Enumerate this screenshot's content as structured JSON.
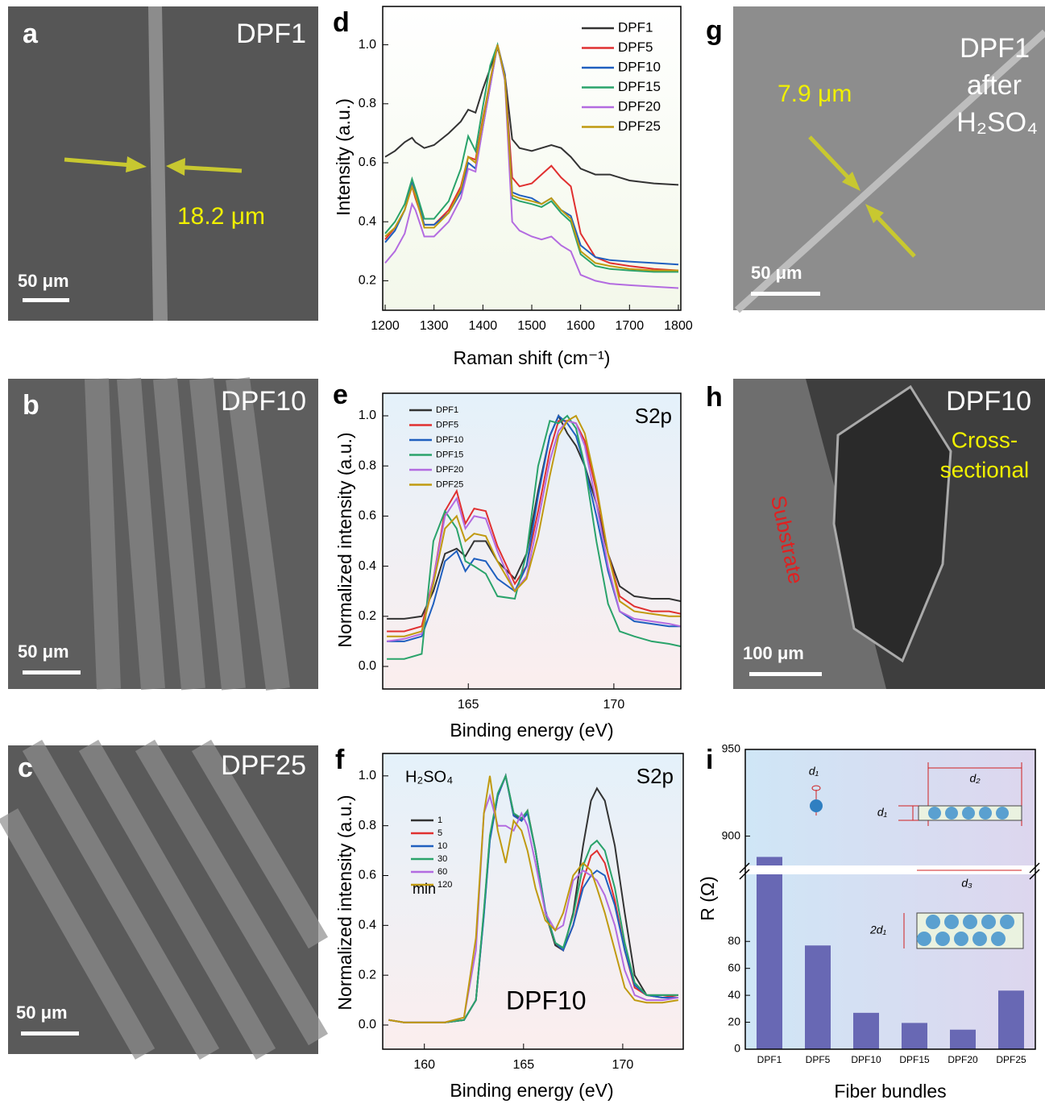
{
  "panels": [
    {
      "label": "a",
      "texts": [
        "DPF1",
        "18.2 μm",
        "50 μm"
      ]
    },
    {
      "label": "b",
      "texts": [
        "DPF10",
        "50 μm"
      ]
    },
    {
      "label": "c",
      "texts": [
        "DPF25",
        "50 μm"
      ]
    },
    {
      "label": "g",
      "texts": [
        "DPF1",
        "after",
        "H₂SO₄",
        "7.9 μm",
        "50 μm"
      ]
    },
    {
      "label": "h",
      "texts": [
        "DPF10",
        "Cross-",
        "sectional",
        "Substrate",
        "100 μm"
      ]
    }
  ],
  "chart_data": [
    {
      "type": "line",
      "label": "d",
      "x_label": "Raman shift (cm⁻¹)",
      "y_label": "Intensity (a.u.)",
      "x": [
        1200,
        1220,
        1240,
        1255,
        1262,
        1280,
        1300,
        1330,
        1355,
        1370,
        1385,
        1400,
        1415,
        1430,
        1445,
        1460,
        1475,
        1500,
        1520,
        1540,
        1560,
        1580,
        1600,
        1630,
        1660,
        1700,
        1750,
        1800
      ],
      "xlim": [
        1195,
        1805
      ],
      "ylim": [
        0.1,
        1.13
      ],
      "xticks": [
        1200,
        1300,
        1400,
        1500,
        1600,
        1700,
        1800
      ],
      "yticks": [
        0.2,
        0.4,
        0.6,
        0.8,
        {
          "value": 1,
          "label": "1.0"
        }
      ],
      "series": [
        {
          "name": "DPF1",
          "color": "#333333",
          "values": [
            0.62,
            0.64,
            0.67,
            0.685,
            0.67,
            0.65,
            0.66,
            0.7,
            0.74,
            0.78,
            0.77,
            0.85,
            0.92,
            0.99,
            0.9,
            0.68,
            0.65,
            0.64,
            0.65,
            0.66,
            0.65,
            0.62,
            0.58,
            0.56,
            0.56,
            0.54,
            0.53,
            0.525
          ]
        },
        {
          "name": "DPF5",
          "color": "#e03030",
          "values": [
            0.34,
            0.38,
            0.44,
            0.52,
            0.48,
            0.39,
            0.39,
            0.44,
            0.52,
            0.62,
            0.61,
            0.75,
            0.88,
            1.0,
            0.9,
            0.55,
            0.52,
            0.53,
            0.56,
            0.59,
            0.55,
            0.52,
            0.36,
            0.28,
            0.26,
            0.25,
            0.24,
            0.235
          ]
        },
        {
          "name": "DPF10",
          "color": "#1f5fbf",
          "values": [
            0.33,
            0.37,
            0.44,
            0.53,
            0.5,
            0.39,
            0.39,
            0.43,
            0.5,
            0.6,
            0.58,
            0.72,
            0.86,
            1.0,
            0.9,
            0.5,
            0.49,
            0.48,
            0.46,
            0.48,
            0.44,
            0.42,
            0.32,
            0.28,
            0.27,
            0.265,
            0.26,
            0.255
          ]
        },
        {
          "name": "DPF15",
          "color": "#2aa36b",
          "values": [
            0.36,
            0.4,
            0.46,
            0.545,
            0.51,
            0.41,
            0.41,
            0.47,
            0.58,
            0.69,
            0.64,
            0.79,
            0.93,
            1.0,
            0.88,
            0.48,
            0.47,
            0.46,
            0.45,
            0.47,
            0.43,
            0.4,
            0.29,
            0.25,
            0.24,
            0.235,
            0.23,
            0.23
          ]
        },
        {
          "name": "DPF20",
          "color": "#b36be0",
          "values": [
            0.26,
            0.3,
            0.36,
            0.46,
            0.44,
            0.35,
            0.35,
            0.4,
            0.48,
            0.58,
            0.57,
            0.72,
            0.86,
            1.0,
            0.88,
            0.4,
            0.37,
            0.35,
            0.34,
            0.35,
            0.32,
            0.3,
            0.22,
            0.2,
            0.19,
            0.185,
            0.18,
            0.175
          ]
        },
        {
          "name": "DPF25",
          "color": "#c09a10",
          "values": [
            0.35,
            0.38,
            0.44,
            0.52,
            0.49,
            0.38,
            0.38,
            0.43,
            0.51,
            0.62,
            0.6,
            0.74,
            0.88,
            1.0,
            0.89,
            0.49,
            0.48,
            0.47,
            0.46,
            0.48,
            0.44,
            0.41,
            0.3,
            0.26,
            0.25,
            0.24,
            0.235,
            0.235
          ]
        }
      ]
    },
    {
      "type": "line",
      "label": "e",
      "x_label": "Binding energy (eV)",
      "y_label": "Normalized intensity (a.u.)",
      "annotations": [
        "S2p"
      ],
      "x": [
        162.2,
        162.8,
        163.4,
        163.8,
        164.2,
        164.6,
        164.9,
        165.2,
        165.6,
        166.0,
        166.6,
        167.0,
        167.4,
        167.8,
        168.1,
        168.4,
        168.7,
        169.0,
        169.4,
        169.8,
        170.2,
        170.7,
        171.3,
        171.9,
        172.3
      ],
      "xlim": [
        162.06,
        172.3
      ],
      "ylim": [
        -0.09,
        1.09
      ],
      "xticks": [
        165,
        170
      ],
      "yticks": [
        {
          "value": 0,
          "label": "0.0"
        },
        0.2,
        0.4,
        0.6,
        0.8,
        {
          "value": 1,
          "label": "1.0"
        }
      ],
      "series": [
        {
          "name": "DPF1",
          "color": "#333333",
          "values": [
            0.19,
            0.19,
            0.2,
            0.3,
            0.45,
            0.47,
            0.44,
            0.5,
            0.5,
            0.42,
            0.35,
            0.45,
            0.7,
            0.92,
            1.0,
            0.93,
            0.88,
            0.8,
            0.65,
            0.45,
            0.32,
            0.28,
            0.27,
            0.27,
            0.26
          ]
        },
        {
          "name": "DPF5",
          "color": "#e03030",
          "values": [
            0.14,
            0.14,
            0.16,
            0.35,
            0.62,
            0.7,
            0.57,
            0.63,
            0.62,
            0.48,
            0.33,
            0.4,
            0.62,
            0.86,
            0.98,
            0.98,
            0.97,
            0.9,
            0.7,
            0.45,
            0.28,
            0.24,
            0.22,
            0.22,
            0.21
          ]
        },
        {
          "name": "DPF10",
          "color": "#1f5fbf",
          "values": [
            0.1,
            0.1,
            0.12,
            0.25,
            0.42,
            0.46,
            0.38,
            0.43,
            0.42,
            0.35,
            0.3,
            0.4,
            0.68,
            0.92,
            1.0,
            0.97,
            0.92,
            0.8,
            0.6,
            0.38,
            0.22,
            0.18,
            0.17,
            0.16,
            0.16
          ]
        },
        {
          "name": "DPF15",
          "color": "#2aa36b",
          "values": [
            0.03,
            0.03,
            0.05,
            0.5,
            0.62,
            0.55,
            0.42,
            0.4,
            0.37,
            0.28,
            0.27,
            0.45,
            0.8,
            0.98,
            0.97,
            1.0,
            0.95,
            0.8,
            0.5,
            0.25,
            0.14,
            0.12,
            0.1,
            0.09,
            0.08
          ]
        },
        {
          "name": "DPF20",
          "color": "#b36be0",
          "values": [
            0.1,
            0.11,
            0.13,
            0.35,
            0.6,
            0.67,
            0.55,
            0.6,
            0.59,
            0.46,
            0.3,
            0.36,
            0.58,
            0.82,
            0.94,
            0.98,
            0.97,
            0.88,
            0.65,
            0.4,
            0.22,
            0.19,
            0.18,
            0.17,
            0.16
          ]
        },
        {
          "name": "DPF25",
          "color": "#c09a10",
          "values": [
            0.12,
            0.12,
            0.14,
            0.33,
            0.55,
            0.6,
            0.5,
            0.53,
            0.52,
            0.42,
            0.3,
            0.35,
            0.52,
            0.76,
            0.92,
            0.98,
            1.0,
            0.93,
            0.72,
            0.45,
            0.26,
            0.22,
            0.21,
            0.2,
            0.2
          ]
        }
      ]
    },
    {
      "type": "line",
      "label": "f",
      "x_label": "Binding energy (eV)",
      "y_label": "Normalized intensity (a.u.)",
      "annotations": [
        "H₂SO₄",
        "min",
        "S2p",
        "DPF10"
      ],
      "x": [
        158.2,
        159,
        160,
        161,
        162,
        162.6,
        163.0,
        163.3,
        163.7,
        164.1,
        164.5,
        164.9,
        165.2,
        165.6,
        166.1,
        166.6,
        167.0,
        167.5,
        168.0,
        168.4,
        168.7,
        169.1,
        169.6,
        170.1,
        170.6,
        171.2,
        172,
        172.8
      ],
      "xlim": [
        157.9,
        173.05
      ],
      "ylim": [
        -0.097,
        1.09
      ],
      "xticks": [
        160,
        165,
        170
      ],
      "yticks": [
        {
          "value": 0,
          "label": "0.0"
        },
        0.2,
        0.4,
        0.6,
        0.8,
        {
          "value": 1,
          "label": "1.0"
        }
      ],
      "series": [
        {
          "name": "1",
          "color": "#333333",
          "values": [
            0.02,
            0.01,
            0.01,
            0.01,
            0.02,
            0.1,
            0.45,
            0.75,
            0.92,
            1.0,
            0.85,
            0.82,
            0.86,
            0.7,
            0.45,
            0.32,
            0.3,
            0.45,
            0.72,
            0.9,
            0.95,
            0.9,
            0.72,
            0.45,
            0.2,
            0.12,
            0.12,
            0.12
          ]
        },
        {
          "name": "5",
          "color": "#e03030",
          "values": [
            0.02,
            0.01,
            0.01,
            0.01,
            0.02,
            0.1,
            0.45,
            0.75,
            0.92,
            1.0,
            0.84,
            0.82,
            0.86,
            0.7,
            0.45,
            0.33,
            0.3,
            0.4,
            0.58,
            0.68,
            0.7,
            0.65,
            0.5,
            0.3,
            0.15,
            0.12,
            0.11,
            0.12
          ]
        },
        {
          "name": "10",
          "color": "#1f5fbf",
          "values": [
            0.02,
            0.01,
            0.01,
            0.01,
            0.02,
            0.1,
            0.44,
            0.74,
            0.92,
            1.0,
            0.84,
            0.82,
            0.85,
            0.7,
            0.46,
            0.33,
            0.3,
            0.4,
            0.55,
            0.6,
            0.62,
            0.6,
            0.48,
            0.3,
            0.16,
            0.12,
            0.11,
            0.11
          ]
        },
        {
          "name": "30",
          "color": "#2aa36b",
          "values": [
            0.02,
            0.01,
            0.01,
            0.01,
            0.02,
            0.1,
            0.46,
            0.76,
            0.93,
            1.0,
            0.85,
            0.83,
            0.86,
            0.7,
            0.45,
            0.33,
            0.31,
            0.44,
            0.64,
            0.72,
            0.74,
            0.7,
            0.55,
            0.33,
            0.17,
            0.12,
            0.12,
            0.12
          ]
        },
        {
          "name": "60",
          "color": "#b36be0",
          "values": [
            0.02,
            0.01,
            0.01,
            0.01,
            0.03,
            0.3,
            0.85,
            0.92,
            0.8,
            0.8,
            0.78,
            0.85,
            0.8,
            0.65,
            0.45,
            0.38,
            0.4,
            0.58,
            0.62,
            0.6,
            0.58,
            0.52,
            0.4,
            0.22,
            0.12,
            0.1,
            0.1,
            0.11
          ]
        },
        {
          "name": "120",
          "color": "#c09a10",
          "values": [
            0.02,
            0.01,
            0.01,
            0.01,
            0.03,
            0.35,
            0.85,
            1.0,
            0.78,
            0.65,
            0.82,
            0.78,
            0.7,
            0.55,
            0.42,
            0.38,
            0.45,
            0.6,
            0.65,
            0.62,
            0.55,
            0.45,
            0.3,
            0.15,
            0.1,
            0.09,
            0.09,
            0.1
          ]
        }
      ]
    },
    {
      "type": "bar",
      "label": "i",
      "x_label": "Fiber bundles",
      "y_label": "R (Ω)",
      "color": "#6868b4",
      "categories": [
        "DPF1",
        "DPF5",
        "DPF10",
        "DPF15",
        "DPF20",
        "DPF25"
      ],
      "values": [
        888,
        77,
        27,
        19.5,
        14.5,
        43.5
      ],
      "ylim": [
        0,
        950
      ],
      "ybreak": [
        128,
        884
      ],
      "yticks": [
        0,
        20,
        40,
        60,
        80,
        900,
        950
      ],
      "inset_labels": [
        "d₁",
        "d₂",
        "d₁",
        "d₃",
        "2d₁"
      ]
    }
  ]
}
